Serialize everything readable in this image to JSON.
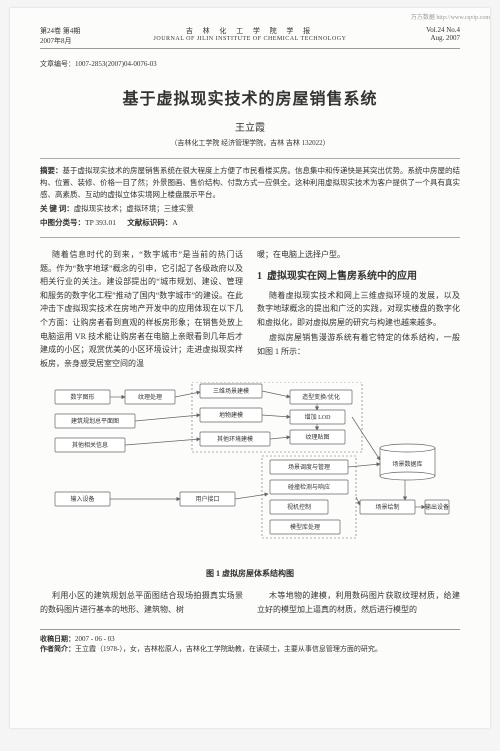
{
  "watermark": "万方数据 http://www.cqvip.com",
  "header": {
    "volume_line": "第24卷 第4期",
    "date_line": "2007年8月",
    "journal_cn": "吉 林 化 工 学 院 学 报",
    "journal_en": "JOURNAL OF JILIN INSTITUTE OF CHEMICAL TECHNOLOGY",
    "vol_en": "Vol.24 No.4",
    "month_en": "Aug. 2007"
  },
  "article_id_label": "文章编号：",
  "article_id": "1007-2853(2007)04-0076-03",
  "title": "基于虚拟现实技术的房屋销售系统",
  "author": "王立霞",
  "affiliation": "（吉林化工学院 经济管理学院，吉林 吉林 132022）",
  "abstract": {
    "label": "摘要：",
    "text": "基于虚拟现实技术的房屋销售系统在很大程度上方便了市民看楼买房。信息集中和传递快是其突出优势。系统中房屋的结构、位置、装修、价格一目了然；外景图画、售价结构、付款方式一应俱全。这种利用虚拟现实技术为客户提供了一个具有真实感、高素质、互动的虚拟立体实境网上楼盘展示平台。"
  },
  "keywords": {
    "label": "关 键 词：",
    "text": "虚拟现实技术；虚拟环境；三维实景"
  },
  "clc": {
    "label": "中图分类号：",
    "value": "TP 393.01",
    "doc_label": "文献标识码：",
    "doc_value": "A"
  },
  "left_col": [
    "随着信息时代的到来，“数字城市”是当前的热门话题。作为“数字地球”概念的引申，它引起了各级政府以及相关行业的关注。建设部提出的“城市规划、建设、管理和服务的数字化工程”推动了国内“数字城市”的建设。在此冲击下虚拟现实技术在房地产开发中的应用体现在以下几个方面：让购房者看到直观的样板房形象；在销售处放上电脑运用 VR 技术能让购房者在电脑上亲眼看到几年后才建成的小区；观赏优美的小区环境设计；走进虚拟现实样板房，亲身感受居室空间的温"
  ],
  "right_col": {
    "lead": "暖；在电脑上选择户型。",
    "section_num": "1",
    "section_title": "虚拟现实在网上售房系统中的应用",
    "para": "随着虚拟现实技术和网上三维虚拟环境的发展，以及数字地球概念的提出和广泛的实践，对现实楼盘的数字化和虚拟化，即对虚拟房屋的研究与构建也越来越多。",
    "para2": "虚拟房屋销售漫游系统有着它特定的体系结构，一般如图 1 所示："
  },
  "diagram": {
    "boxes": {
      "b1": "数字图形",
      "b2": "纹理处理",
      "b3": "三维场景建模",
      "b4": "造型变换/优化",
      "b5": "建筑规划总平面图",
      "b6": "地物建模",
      "b7": "增加 LOD",
      "b8": "其他相关信息",
      "b9": "其他环境建模",
      "b10": "纹理贴图",
      "b11": "场景调度与管理",
      "b12": "场景数据库",
      "b13": "输入设备",
      "b14": "用户接口",
      "b15": "碰撞检测与响应",
      "b16": "场景绘制",
      "b17": "输出设备",
      "b18": "视机控制",
      "b19": "模型库处理"
    },
    "style": {
      "stroke": "#666666",
      "fill": "#ffffff",
      "text_color": "#333333",
      "font_size": 6,
      "box_rx": 1
    }
  },
  "fig_caption": "图 1  虚拟房屋体系结构图",
  "bottom_left": "利用小区的建筑规划总平面图结合现场拍摄真实场景的数码图片进行基本的地形、建筑物、树",
  "bottom_right": "木等地物的建模，利用数码图片获取纹理材质，给建立好的模型加上逼真的材质，然后进行模型的",
  "footer": {
    "recv_label": "收稿日期：",
    "recv_date": "2007 - 06 - 03",
    "author_label": "作者简介：",
    "author_bio": "王立霞（1978-），女，吉林松原人，吉林化工学院助教，在读硕士，主要从事信息管理方面的研究。"
  }
}
